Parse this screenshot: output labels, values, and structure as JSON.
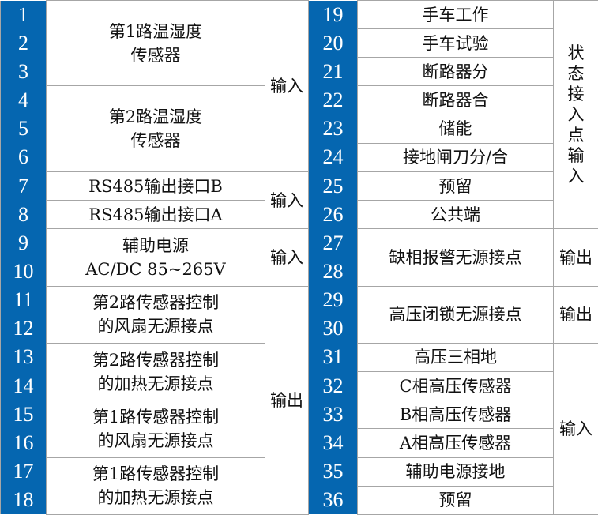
{
  "colors": {
    "number_bg": "#0566b0",
    "number_text": "#ffffff",
    "border": "#a6a6a6"
  },
  "left": {
    "numbers": [
      "1",
      "2",
      "3",
      "4",
      "5",
      "6",
      "7",
      "8",
      "9",
      "10",
      "11",
      "12",
      "13",
      "14",
      "15",
      "16",
      "17",
      "18"
    ],
    "descriptions": [
      "第1路温湿度\n传感器",
      "第2路温湿度\n传感器",
      "RS485输出接口B",
      "RS485输出接口A",
      "辅助电源\nAC/DC 85~265V",
      "第2路传感器控制\n的风扇无源接点",
      "第2路传感器控制\n的加热无源接点",
      "第1路传感器控制\n的风扇无源接点",
      "第1路传感器控制\n的加热无源接点"
    ],
    "types": [
      "输入",
      "输入",
      "输入",
      "输出"
    ]
  },
  "right": {
    "numbers": [
      "19",
      "20",
      "21",
      "22",
      "23",
      "24",
      "25",
      "26",
      "27",
      "28",
      "29",
      "30",
      "31",
      "32",
      "33",
      "34",
      "35",
      "36"
    ],
    "descriptions": [
      "手车工作",
      "手车试验",
      "断路器分",
      "断路器合",
      "储能",
      "接地闸刀分/合",
      "预留",
      "公共端",
      "缺相报警无源接点",
      "高压闭锁无源接点",
      "高压三相地",
      "C相高压传感器",
      "B相高压传感器",
      "A相高压传感器",
      "辅助电源接地",
      "预留"
    ],
    "types": [
      "状\n态\n接\n入\n点\n输\n入",
      "输出",
      "输出",
      "输入"
    ]
  }
}
